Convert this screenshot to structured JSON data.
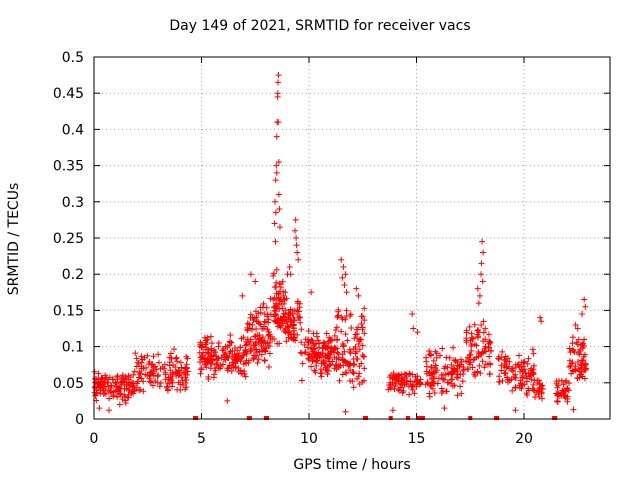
{
  "chart_data": {
    "type": "scatter",
    "title": "Day 149 of 2021, SRMTID for receiver vacs",
    "xlabel": "GPS time / hours",
    "ylabel": "SRMTID / TECUs",
    "xlim": [
      0,
      24
    ],
    "ylim": [
      0,
      0.5
    ],
    "xticks": [
      0,
      5,
      10,
      15,
      20
    ],
    "yticks": [
      0,
      0.05,
      0.1,
      0.15,
      0.2,
      0.25,
      0.3,
      0.35,
      0.4,
      0.45,
      0.5
    ],
    "grid": true,
    "marker": "+",
    "color": "#ff0000",
    "series": [
      {
        "name": "SRMTID",
        "clusters": [
          {
            "x_start": 0.0,
            "x_end": 1.9,
            "y_low": 0.02,
            "y_high": 0.07,
            "count": 130
          },
          {
            "x_start": 1.9,
            "x_end": 4.4,
            "y_low": 0.03,
            "y_high": 0.1,
            "count": 130
          },
          {
            "x_start": 4.9,
            "x_end": 7.1,
            "y_low": 0.05,
            "y_high": 0.12,
            "count": 160
          },
          {
            "x_start": 7.1,
            "x_end": 8.3,
            "y_low": 0.07,
            "y_high": 0.17,
            "count": 110
          },
          {
            "x_start": 8.3,
            "x_end": 8.9,
            "y_low": 0.1,
            "y_high": 0.21,
            "count": 70
          },
          {
            "x_start": 8.9,
            "x_end": 9.6,
            "y_low": 0.1,
            "y_high": 0.17,
            "count": 60
          },
          {
            "x_start": 9.6,
            "x_end": 11.3,
            "y_low": 0.05,
            "y_high": 0.13,
            "count": 130
          },
          {
            "x_start": 11.3,
            "x_end": 12.6,
            "y_low": 0.03,
            "y_high": 0.16,
            "count": 100
          },
          {
            "x_start": 13.6,
            "x_end": 15.2,
            "y_low": 0.03,
            "y_high": 0.07,
            "count": 80
          },
          {
            "x_start": 15.4,
            "x_end": 17.2,
            "y_low": 0.03,
            "y_high": 0.1,
            "count": 110
          },
          {
            "x_start": 17.3,
            "x_end": 18.5,
            "y_low": 0.05,
            "y_high": 0.14,
            "count": 80
          },
          {
            "x_start": 18.8,
            "x_end": 20.5,
            "y_low": 0.03,
            "y_high": 0.1,
            "count": 100
          },
          {
            "x_start": 20.5,
            "x_end": 20.9,
            "y_low": 0.02,
            "y_high": 0.06,
            "count": 20
          },
          {
            "x_start": 21.5,
            "x_end": 22.1,
            "y_low": 0.02,
            "y_high": 0.06,
            "count": 40
          },
          {
            "x_start": 22.1,
            "x_end": 22.9,
            "y_low": 0.04,
            "y_high": 0.12,
            "count": 60
          }
        ],
        "spikes": [
          {
            "x": 8.42,
            "y": 0.3
          },
          {
            "x": 8.45,
            "y": 0.33
          },
          {
            "x": 8.48,
            "y": 0.35
          },
          {
            "x": 8.5,
            "y": 0.39
          },
          {
            "x": 8.52,
            "y": 0.41
          },
          {
            "x": 8.54,
            "y": 0.445
          },
          {
            "x": 8.55,
            "y": 0.45
          },
          {
            "x": 8.56,
            "y": 0.465
          },
          {
            "x": 8.58,
            "y": 0.475
          },
          {
            "x": 8.6,
            "y": 0.31
          },
          {
            "x": 8.62,
            "y": 0.29
          },
          {
            "x": 8.65,
            "y": 0.265
          },
          {
            "x": 8.4,
            "y": 0.27
          },
          {
            "x": 8.44,
            "y": 0.245
          },
          {
            "x": 8.5,
            "y": 0.34
          },
          {
            "x": 8.57,
            "y": 0.41
          },
          {
            "x": 8.46,
            "y": 0.285
          },
          {
            "x": 8.6,
            "y": 0.355
          },
          {
            "x": 9.1,
            "y": 0.21
          },
          {
            "x": 9.15,
            "y": 0.2
          },
          {
            "x": 9.0,
            "y": 0.2
          },
          {
            "x": 9.35,
            "y": 0.26
          },
          {
            "x": 9.38,
            "y": 0.275
          },
          {
            "x": 9.4,
            "y": 0.25
          },
          {
            "x": 9.42,
            "y": 0.24
          },
          {
            "x": 9.45,
            "y": 0.23
          },
          {
            "x": 9.5,
            "y": 0.22
          },
          {
            "x": 11.5,
            "y": 0.22
          },
          {
            "x": 11.6,
            "y": 0.21
          },
          {
            "x": 11.7,
            "y": 0.2
          },
          {
            "x": 11.55,
            "y": 0.195
          },
          {
            "x": 11.65,
            "y": 0.185
          },
          {
            "x": 11.75,
            "y": 0.175
          },
          {
            "x": 12.2,
            "y": 0.18
          },
          {
            "x": 12.3,
            "y": 0.17
          },
          {
            "x": 14.8,
            "y": 0.145
          },
          {
            "x": 14.85,
            "y": 0.125
          },
          {
            "x": 15.05,
            "y": 0.12
          },
          {
            "x": 17.9,
            "y": 0.16
          },
          {
            "x": 17.95,
            "y": 0.17
          },
          {
            "x": 18.0,
            "y": 0.2
          },
          {
            "x": 18.02,
            "y": 0.215
          },
          {
            "x": 18.05,
            "y": 0.245
          },
          {
            "x": 18.1,
            "y": 0.23
          },
          {
            "x": 17.85,
            "y": 0.18
          },
          {
            "x": 18.08,
            "y": 0.19
          },
          {
            "x": 20.75,
            "y": 0.14
          },
          {
            "x": 20.8,
            "y": 0.135
          },
          {
            "x": 22.8,
            "y": 0.165
          },
          {
            "x": 22.85,
            "y": 0.155
          },
          {
            "x": 22.7,
            "y": 0.145
          },
          {
            "x": 22.4,
            "y": 0.13
          },
          {
            "x": 22.5,
            "y": 0.125
          },
          {
            "x": 0.25,
            "y": 0.015
          },
          {
            "x": 0.7,
            "y": 0.012
          },
          {
            "x": 1.2,
            "y": 0.02
          },
          {
            "x": 11.7,
            "y": 0.01
          },
          {
            "x": 13.9,
            "y": 0.012
          },
          {
            "x": 16.3,
            "y": 0.015
          },
          {
            "x": 19.6,
            "y": 0.012
          },
          {
            "x": 22.3,
            "y": 0.013
          },
          {
            "x": 6.2,
            "y": 0.025
          },
          {
            "x": 7.3,
            "y": 0.2
          },
          {
            "x": 7.5,
            "y": 0.19
          },
          {
            "x": 6.9,
            "y": 0.17
          },
          {
            "x": 10.1,
            "y": 0.175
          },
          {
            "x": 8.9,
            "y": 0.175
          }
        ],
        "zero_markers": [
          4.7,
          4.75,
          7.2,
          7.25,
          8.0,
          8.05,
          12.6,
          12.65,
          13.8,
          14.6,
          15.1,
          15.15,
          15.25,
          15.3,
          17.5,
          18.7,
          18.75,
          21.4,
          21.45
        ]
      }
    ]
  }
}
